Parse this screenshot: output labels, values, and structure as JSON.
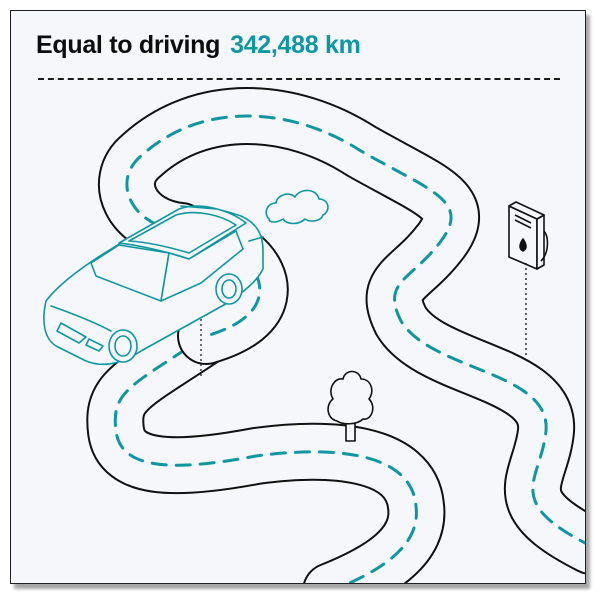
{
  "headline": {
    "label": "Equal to driving",
    "value": "342,488 km"
  },
  "colors": {
    "accent": "#0f97a1",
    "ink": "#111111",
    "background": "#f5f7fb"
  },
  "icons": [
    "car-icon",
    "exhaust-cloud-icon",
    "charging-station-icon",
    "tree-icon",
    "winding-road"
  ]
}
